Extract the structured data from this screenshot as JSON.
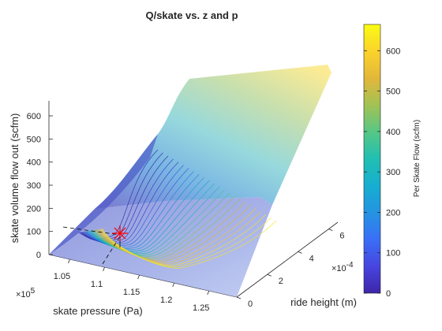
{
  "chart_data": {
    "type": "surface3d",
    "title": "Q/skate vs. z and p",
    "xlabel": "skate pressure (Pa)",
    "ylabel": "ride height (m)",
    "zlabel": "skate volume flow out (scfm)",
    "colorbar_label": "Per Skate Flow (scfm)",
    "x_multiplier": "×10",
    "x_multiplier_exp": "5",
    "y_multiplier": "×10",
    "y_multiplier_exp": "-4",
    "x_ticks": [
      "1.05",
      "1.1",
      "1.15",
      "1.2",
      "1.25"
    ],
    "y_ticks": [
      "0",
      "2",
      "4",
      "6"
    ],
    "z_ticks": [
      "0",
      "100",
      "200",
      "300",
      "400",
      "500",
      "600"
    ],
    "colorbar_ticks": [
      "0",
      "100",
      "200",
      "300",
      "400",
      "500",
      "600"
    ],
    "xlim": [
      102000,
      129000
    ],
    "ylim": [
      0,
      0.00066
    ],
    "zlim": [
      0,
      680
    ],
    "clim": [
      0,
      665
    ],
    "colormap": "parula",
    "surface_alpha": 0.55,
    "surface_samples": [
      {
        "p": 102000,
        "z": 0.0,
        "q": 0
      },
      {
        "p": 116000,
        "z": 0.0,
        "q": 0
      },
      {
        "p": 129000,
        "z": 0.0,
        "q": 0
      },
      {
        "p": 102000,
        "z": 0.00025,
        "q": 310
      },
      {
        "p": 116000,
        "z": 0.00025,
        "q": 330
      },
      {
        "p": 129000,
        "z": 0.00025,
        "q": 360
      },
      {
        "p": 102000,
        "z": 0.00066,
        "q": 560
      },
      {
        "p": 116000,
        "z": 0.00066,
        "q": 610
      },
      {
        "p": 129000,
        "z": 0.00066,
        "q": 665
      }
    ],
    "operating_point": {
      "p": 112500,
      "z": 0.0001,
      "q": 90,
      "marker": "asterisk",
      "color": "#ff0000"
    },
    "contour_levels": 24,
    "grid": true
  }
}
